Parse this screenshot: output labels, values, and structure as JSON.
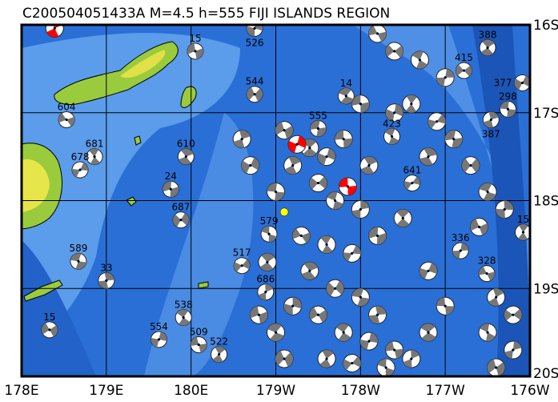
{
  "title": "C200504051433A M=4.5 h=555 FIJI ISLANDS REGION",
  "colors": {
    "ocean_deep": "#1f5fc8",
    "ocean": "#3a7ee0",
    "ocean_shallow": "#6aa8ee",
    "land_low": "#9acb3c",
    "land_high": "#e6e64a",
    "mechanism": "#777777",
    "highlight": "#ff0000",
    "target": "#ffff00"
  },
  "axes": {
    "lon_ticks": [
      {
        "value": 178,
        "label": "178E"
      },
      {
        "value": 179,
        "label": "179E"
      },
      {
        "value": 180,
        "label": "180E"
      },
      {
        "value": 181,
        "label": "179W"
      },
      {
        "value": 182,
        "label": "178W"
      },
      {
        "value": 183,
        "label": "177W"
      },
      {
        "value": 184,
        "label": "176W"
      }
    ],
    "lat_ticks": [
      {
        "value": -16,
        "label": "16S"
      },
      {
        "value": -17,
        "label": "17S"
      },
      {
        "value": -18,
        "label": "18S"
      },
      {
        "value": -19,
        "label": "19S"
      },
      {
        "value": -20,
        "label": "20S"
      }
    ],
    "lon_range": [
      178,
      184
    ],
    "lat_range": [
      -20,
      -16
    ]
  },
  "target_event": {
    "lon": -178.9,
    "lat": -18.13
  },
  "highlight_events": [
    {
      "lon": -178.75,
      "lat": -17.36
    },
    {
      "lon": -178.15,
      "lat": -17.84
    },
    {
      "lon": 178.39,
      "lat": -16.04
    }
  ],
  "labeled_events": [
    {
      "depth": "604",
      "lon": 178.53,
      "lat": -17.08
    },
    {
      "depth": "681",
      "lon": 178.86,
      "lat": -17.5
    },
    {
      "depth": "678",
      "lon": 178.69,
      "lat": -17.65
    },
    {
      "depth": "24",
      "lon": 179.76,
      "lat": -17.87
    },
    {
      "depth": "610",
      "lon": 179.94,
      "lat": -17.5
    },
    {
      "depth": "687",
      "lon": 179.88,
      "lat": -18.22
    },
    {
      "depth": "589",
      "lon": 178.67,
      "lat": -18.69
    },
    {
      "depth": "33",
      "lon": 179.0,
      "lat": -18.91
    },
    {
      "depth": "15",
      "lon": 178.33,
      "lat": -19.47
    },
    {
      "depth": "538",
      "lon": 179.91,
      "lat": -19.33
    },
    {
      "depth": "554",
      "lon": 179.62,
      "lat": -19.58
    },
    {
      "depth": "509",
      "lon": -179.91,
      "lat": -19.64
    },
    {
      "depth": "522",
      "lon": -179.67,
      "lat": -19.75
    },
    {
      "depth": "517",
      "lon": -179.4,
      "lat": -18.74
    },
    {
      "depth": "579",
      "lon": -179.08,
      "lat": -18.38
    },
    {
      "depth": "686",
      "lon": -179.12,
      "lat": -19.04
    },
    {
      "depth": "544",
      "lon": -179.25,
      "lat": -16.79
    },
    {
      "depth": "14",
      "lon": -178.17,
      "lat": -16.81
    },
    {
      "depth": "526",
      "lon": -179.25,
      "lat": -16.04
    },
    {
      "depth": "15",
      "lon": -179.95,
      "lat": -16.3
    },
    {
      "depth": "388",
      "lon": -176.5,
      "lat": -16.26
    },
    {
      "depth": "377",
      "lon": -176.09,
      "lat": -16.66
    },
    {
      "depth": "298",
      "lon": -176.26,
      "lat": -16.96
    },
    {
      "depth": "387",
      "lon": -176.46,
      "lat": -17.08
    },
    {
      "depth": "415",
      "lon": -176.78,
      "lat": -16.52
    },
    {
      "depth": "423",
      "lon": -177.63,
      "lat": -17.27
    },
    {
      "depth": "336",
      "lon": -176.82,
      "lat": -18.57
    },
    {
      "depth": "328",
      "lon": -176.51,
      "lat": -18.83
    },
    {
      "depth": "15",
      "lon": -176.08,
      "lat": -18.36
    },
    {
      "depth": "641",
      "lon": -177.39,
      "lat": -17.8
    },
    {
      "depth": "555",
      "lon": -178.5,
      "lat": -17.18
    }
  ],
  "other_events": [
    [
      -178.9,
      -17.2
    ],
    [
      -178.6,
      -17.4
    ],
    [
      -178.4,
      -17.5
    ],
    [
      -178.2,
      -17.3
    ],
    [
      -178.8,
      -17.6
    ],
    [
      -178.5,
      -17.8
    ],
    [
      -178.3,
      -18.0
    ],
    [
      -178.0,
      -18.1
    ],
    [
      -178.7,
      -18.4
    ],
    [
      -178.4,
      -18.5
    ],
    [
      -178.1,
      -18.6
    ],
    [
      -177.8,
      -18.4
    ],
    [
      -178.6,
      -18.8
    ],
    [
      -178.3,
      -19.0
    ],
    [
      -178.0,
      -19.1
    ],
    [
      -177.8,
      -19.3
    ],
    [
      -178.5,
      -19.3
    ],
    [
      -178.2,
      -19.5
    ],
    [
      -177.9,
      -19.6
    ],
    [
      -177.6,
      -19.7
    ],
    [
      -178.4,
      -19.8
    ],
    [
      -178.1,
      -19.85
    ],
    [
      -177.7,
      -19.9
    ],
    [
      -177.4,
      -19.8
    ],
    [
      -178.9,
      -19.8
    ],
    [
      -179.0,
      -19.5
    ],
    [
      -178.8,
      -19.2
    ],
    [
      -179.2,
      -19.3
    ],
    [
      -179.1,
      -18.7
    ],
    [
      -179.3,
      -17.6
    ],
    [
      -179.0,
      -17.9
    ],
    [
      -179.4,
      -17.3
    ],
    [
      -177.6,
      -16.3
    ],
    [
      -177.3,
      -16.4
    ],
    [
      -177.0,
      -16.6
    ],
    [
      -177.8,
      -16.1
    ],
    [
      -177.4,
      -16.9
    ],
    [
      -177.1,
      -17.1
    ],
    [
      -176.9,
      -17.3
    ],
    [
      -177.2,
      -17.5
    ],
    [
      -176.7,
      -17.6
    ],
    [
      -176.5,
      -17.9
    ],
    [
      -176.3,
      -18.1
    ],
    [
      -176.6,
      -18.3
    ],
    [
      -177.5,
      -18.2
    ],
    [
      -177.2,
      -18.8
    ],
    [
      -177.0,
      -19.2
    ],
    [
      -176.4,
      -19.1
    ],
    [
      -176.2,
      -19.3
    ],
    [
      -176.5,
      -19.5
    ],
    [
      -176.2,
      -19.7
    ],
    [
      -176.4,
      -19.9
    ],
    [
      -177.2,
      -19.5
    ],
    [
      -177.6,
      -17.0
    ],
    [
      -178.0,
      -16.9
    ],
    [
      -177.9,
      -17.6
    ]
  ]
}
